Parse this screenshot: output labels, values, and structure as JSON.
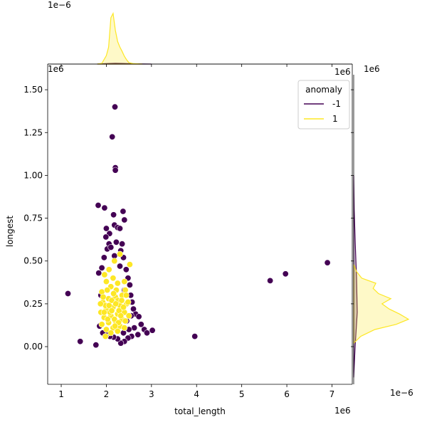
{
  "chart_data": {
    "type": "scatter",
    "subtype": "jointplot",
    "xlabel": "total_length",
    "ylabel": "longest",
    "xlim": [
      700000,
      7450000
    ],
    "ylim": [
      -220000,
      1650000
    ],
    "x_ticks": [
      1000000,
      2000000,
      3000000,
      4000000,
      5000000,
      6000000,
      7000000
    ],
    "x_tick_labels": [
      "1",
      "2",
      "3",
      "4",
      "5",
      "6",
      "7"
    ],
    "y_ticks": [
      0,
      250000,
      500000,
      750000,
      1000000,
      1250000,
      1500000
    ],
    "y_tick_labels": [
      "0.00",
      "0.25",
      "0.50",
      "0.75",
      "1.00",
      "1.25",
      "1.50"
    ],
    "x_offset_label": "1e6",
    "y_offset_label": "1e6",
    "top_marginal_offset_label": "1e−6",
    "right_marginal_offset_label": "1e−6",
    "right_marginal_y_offset_label": "1e6",
    "top_marginal_x_offset_label": "1e6",
    "legend": {
      "title": "anomaly",
      "placement": "top-right",
      "entries": [
        {
          "label": "-1",
          "color": "#440154"
        },
        {
          "label": "1",
          "color": "#fde725"
        }
      ]
    },
    "series": [
      {
        "name": "-1",
        "color": "#440154",
        "points": [
          [
            2190000,
            1400000
          ],
          [
            2130000,
            1225000
          ],
          [
            2200000,
            1045000
          ],
          [
            2200000,
            1030000
          ],
          [
            1820000,
            825000
          ],
          [
            1960000,
            810000
          ],
          [
            2370000,
            790000
          ],
          [
            2160000,
            770000
          ],
          [
            2400000,
            740000
          ],
          [
            2180000,
            710000
          ],
          [
            2000000,
            690000
          ],
          [
            2250000,
            695000
          ],
          [
            2070000,
            660000
          ],
          [
            2300000,
            690000
          ],
          [
            1990000,
            640000
          ],
          [
            2220000,
            610000
          ],
          [
            2060000,
            600000
          ],
          [
            2320000,
            560000
          ],
          [
            2020000,
            570000
          ],
          [
            2100000,
            580000
          ],
          [
            1950000,
            520000
          ],
          [
            2180000,
            530000
          ],
          [
            2380000,
            520000
          ],
          [
            2440000,
            450000
          ],
          [
            1830000,
            430000
          ],
          [
            2480000,
            400000
          ],
          [
            2520000,
            360000
          ],
          [
            2540000,
            300000
          ],
          [
            2570000,
            260000
          ],
          [
            2600000,
            220000
          ],
          [
            2650000,
            190000
          ],
          [
            2720000,
            175000
          ],
          [
            2770000,
            130000
          ],
          [
            2840000,
            100000
          ],
          [
            2900000,
            80000
          ],
          [
            3020000,
            95000
          ],
          [
            2700000,
            70000
          ],
          [
            2620000,
            110000
          ],
          [
            2560000,
            60000
          ],
          [
            2480000,
            50000
          ],
          [
            2400000,
            30000
          ],
          [
            2320000,
            20000
          ],
          [
            2250000,
            45000
          ],
          [
            2160000,
            55000
          ],
          [
            2080000,
            60000
          ],
          [
            2000000,
            70000
          ],
          [
            1920000,
            80000
          ],
          [
            1850000,
            120000
          ],
          [
            1900000,
            460000
          ],
          [
            1880000,
            300000
          ],
          [
            2350000,
            600000
          ],
          [
            2300000,
            470000
          ],
          [
            2400000,
            330000
          ],
          [
            2450000,
            150000
          ],
          [
            2500000,
            100000
          ],
          [
            2380000,
            80000
          ],
          [
            1150000,
            310000
          ],
          [
            1420000,
            30000
          ],
          [
            1770000,
            10000
          ],
          [
            3960000,
            60000
          ],
          [
            5630000,
            385000
          ],
          [
            5970000,
            425000
          ],
          [
            6900000,
            490000
          ],
          [
            2550000,
            180000
          ]
        ]
      },
      {
        "name": "1",
        "color": "#fde725",
        "points": [
          [
            2300000,
            540000
          ],
          [
            2180000,
            500000
          ],
          [
            2060000,
            450000
          ],
          [
            1960000,
            420000
          ],
          [
            2400000,
            380000
          ],
          [
            2250000,
            370000
          ],
          [
            2100000,
            350000
          ],
          [
            1900000,
            320000
          ],
          [
            2350000,
            300000
          ],
          [
            2200000,
            290000
          ],
          [
            2050000,
            280000
          ],
          [
            1920000,
            260000
          ],
          [
            2450000,
            250000
          ],
          [
            2300000,
            240000
          ],
          [
            2150000,
            230000
          ],
          [
            2000000,
            220000
          ],
          [
            1880000,
            200000
          ],
          [
            2400000,
            200000
          ],
          [
            2250000,
            190000
          ],
          [
            2100000,
            180000
          ],
          [
            1950000,
            170000
          ],
          [
            2350000,
            160000
          ],
          [
            2200000,
            150000
          ],
          [
            2050000,
            140000
          ],
          [
            1900000,
            130000
          ],
          [
            2300000,
            120000
          ],
          [
            2150000,
            110000
          ],
          [
            2000000,
            100000
          ],
          [
            2250000,
            90000
          ],
          [
            2100000,
            80000
          ],
          [
            1980000,
            60000
          ],
          [
            2400000,
            110000
          ],
          [
            2500000,
            180000
          ],
          [
            2480000,
            260000
          ],
          [
            2420000,
            330000
          ],
          [
            2150000,
            400000
          ],
          [
            2000000,
            380000
          ],
          [
            2220000,
            330000
          ],
          [
            2120000,
            270000
          ],
          [
            2280000,
            210000
          ],
          [
            1980000,
            240000
          ],
          [
            2180000,
            160000
          ],
          [
            2320000,
            180000
          ],
          [
            2080000,
            200000
          ],
          [
            2380000,
            230000
          ],
          [
            1930000,
            290000
          ],
          [
            2260000,
            270000
          ],
          [
            2160000,
            310000
          ],
          [
            2020000,
            330000
          ],
          [
            2440000,
            300000
          ],
          [
            1870000,
            250000
          ],
          [
            2210000,
            250000
          ],
          [
            2060000,
            240000
          ],
          [
            2340000,
            270000
          ],
          [
            2120000,
            210000
          ],
          [
            1950000,
            200000
          ],
          [
            2270000,
            140000
          ],
          [
            2030000,
            160000
          ],
          [
            2420000,
            150000
          ],
          [
            2190000,
            120000
          ],
          [
            2520000,
            480000
          ]
        ]
      }
    ],
    "marginal_top": {
      "type": "kde",
      "series": [
        {
          "name": "1",
          "x": [
            1800000,
            1900000,
            2000000,
            2050000,
            2100000,
            2150000,
            2200000,
            2250000,
            2300000,
            2350000,
            2400000,
            2450000,
            2500000,
            2600000,
            2800000
          ],
          "density": [
            0.0,
            0.05,
            0.6,
            1.2,
            3.3,
            3.6,
            2.4,
            1.6,
            1.2,
            0.9,
            0.55,
            0.3,
            0.1,
            0.03,
            0.0
          ]
        },
        {
          "name": "-1",
          "x": [
            1800000,
            2000000,
            2200000,
            2400000,
            2600000,
            2800000,
            3000000
          ],
          "density": [
            0.0,
            0.03,
            0.05,
            0.04,
            0.02,
            0.01,
            0.0
          ]
        }
      ]
    },
    "marginal_right": {
      "type": "kde",
      "series": [
        {
          "name": "1",
          "y": [
            20000,
            60000,
            100000,
            130000,
            160000,
            190000,
            220000,
            250000,
            280000,
            310000,
            340000,
            370000,
            400000,
            440000,
            480000
          ],
          "density": [
            0.0,
            0.4,
            1.2,
            2.4,
            3.1,
            2.6,
            2.0,
            1.6,
            2.1,
            1.4,
            1.1,
            1.25,
            0.45,
            0.15,
            0.0
          ]
        },
        {
          "name": "-1",
          "y": [
            -180000,
            0,
            200000,
            400000,
            600000,
            800000,
            1000000
          ],
          "density": [
            0.0,
            0.08,
            0.2,
            0.16,
            0.09,
            0.03,
            0.0
          ]
        }
      ]
    }
  }
}
